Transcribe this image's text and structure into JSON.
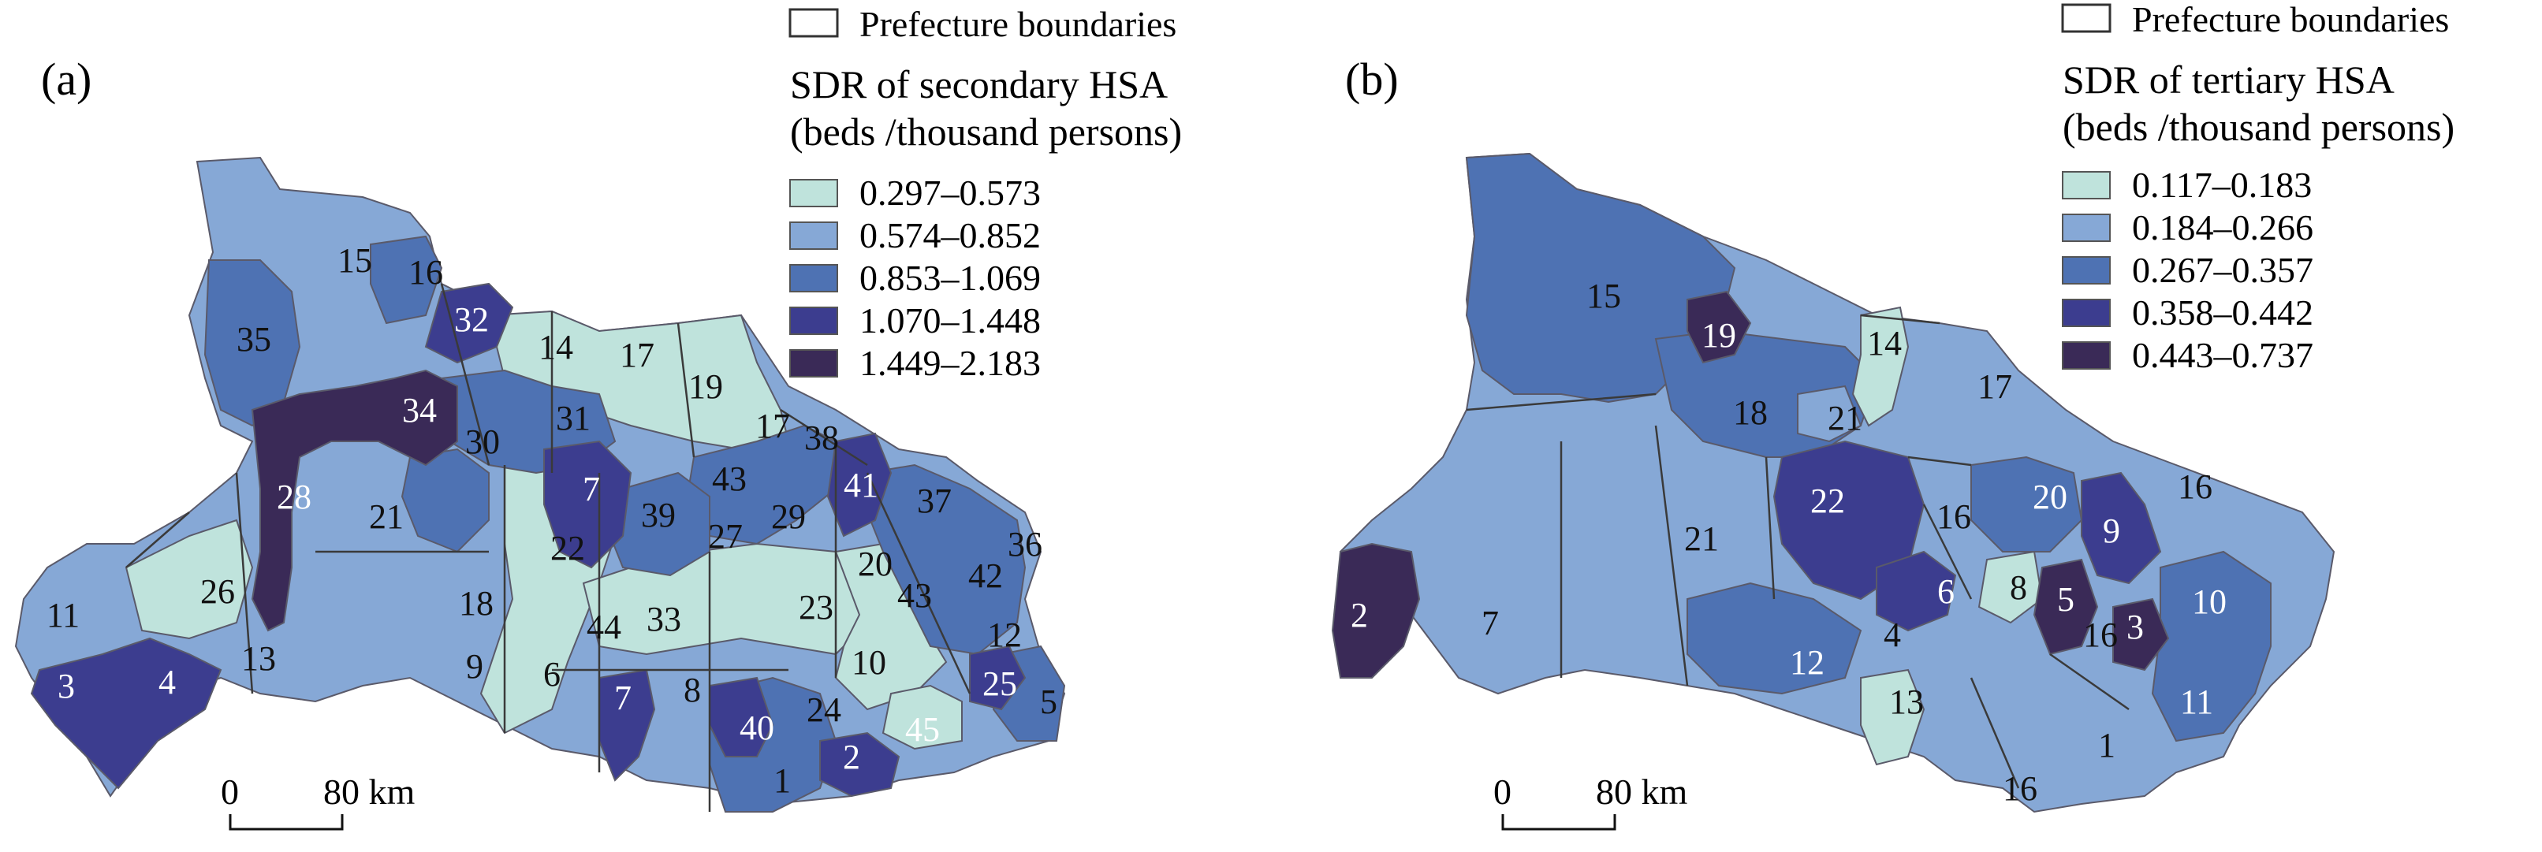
{
  "colors": {
    "c1": "#bfe3dc",
    "c2": "#86a8d6",
    "c3": "#4e72b3",
    "c4": "#3c3d8f",
    "c5": "#3a2a57"
  },
  "panels": [
    {
      "label": "(a)",
      "legend": {
        "boundary_label": "Prefecture boundaries",
        "title_line1": "SDR of secondary HSA",
        "title_line2": "(beds /thousand persons)",
        "classes": [
          {
            "label": "0.297–0.573",
            "color": "#bfe3dc"
          },
          {
            "label": "0.574–0.852",
            "color": "#86a8d6"
          },
          {
            "label": "0.853–1.069",
            "color": "#4e72b3"
          },
          {
            "label": "1.070–1.448",
            "color": "#3c3d8f"
          },
          {
            "label": "1.449–2.183",
            "color": "#3a2a57"
          }
        ]
      },
      "scale": {
        "zero": "0",
        "distance": "80 km"
      },
      "region_labels": [
        "15",
        "16",
        "32",
        "35",
        "14",
        "17",
        "19",
        "34",
        "17",
        "38",
        "30",
        "31",
        "28",
        "41",
        "37",
        "21",
        "7",
        "39",
        "43",
        "27",
        "29",
        "22",
        "36",
        "26",
        "20",
        "42",
        "43",
        "11",
        "18",
        "44",
        "33",
        "23",
        "12",
        "10",
        "9",
        "6",
        "3",
        "4",
        "13",
        "7",
        "8",
        "24",
        "40",
        "45",
        "25",
        "5",
        "2",
        "1"
      ]
    },
    {
      "label": "(b)",
      "legend": {
        "boundary_label": "Prefecture boundaries",
        "title_line1": "SDR of tertiary HSA",
        "title_line2": "(beds /thousand persons)",
        "classes": [
          {
            "label": "0.117–0.183",
            "color": "#bfe3dc"
          },
          {
            "label": "0.184–0.266",
            "color": "#86a8d6"
          },
          {
            "label": "0.267–0.357",
            "color": "#4e72b3"
          },
          {
            "label": "0.358–0.442",
            "color": "#3c3d8f"
          },
          {
            "label": "0.443–0.737",
            "color": "#3a2a57"
          }
        ]
      },
      "scale": {
        "zero": "0",
        "distance": "80 km"
      },
      "region_labels": [
        "15",
        "19",
        "14",
        "17",
        "18",
        "21",
        "22",
        "16",
        "20",
        "9",
        "16",
        "21",
        "6",
        "8",
        "5",
        "10",
        "2",
        "7",
        "16",
        "3",
        "12",
        "4",
        "11",
        "13",
        "1",
        "16"
      ]
    }
  ]
}
